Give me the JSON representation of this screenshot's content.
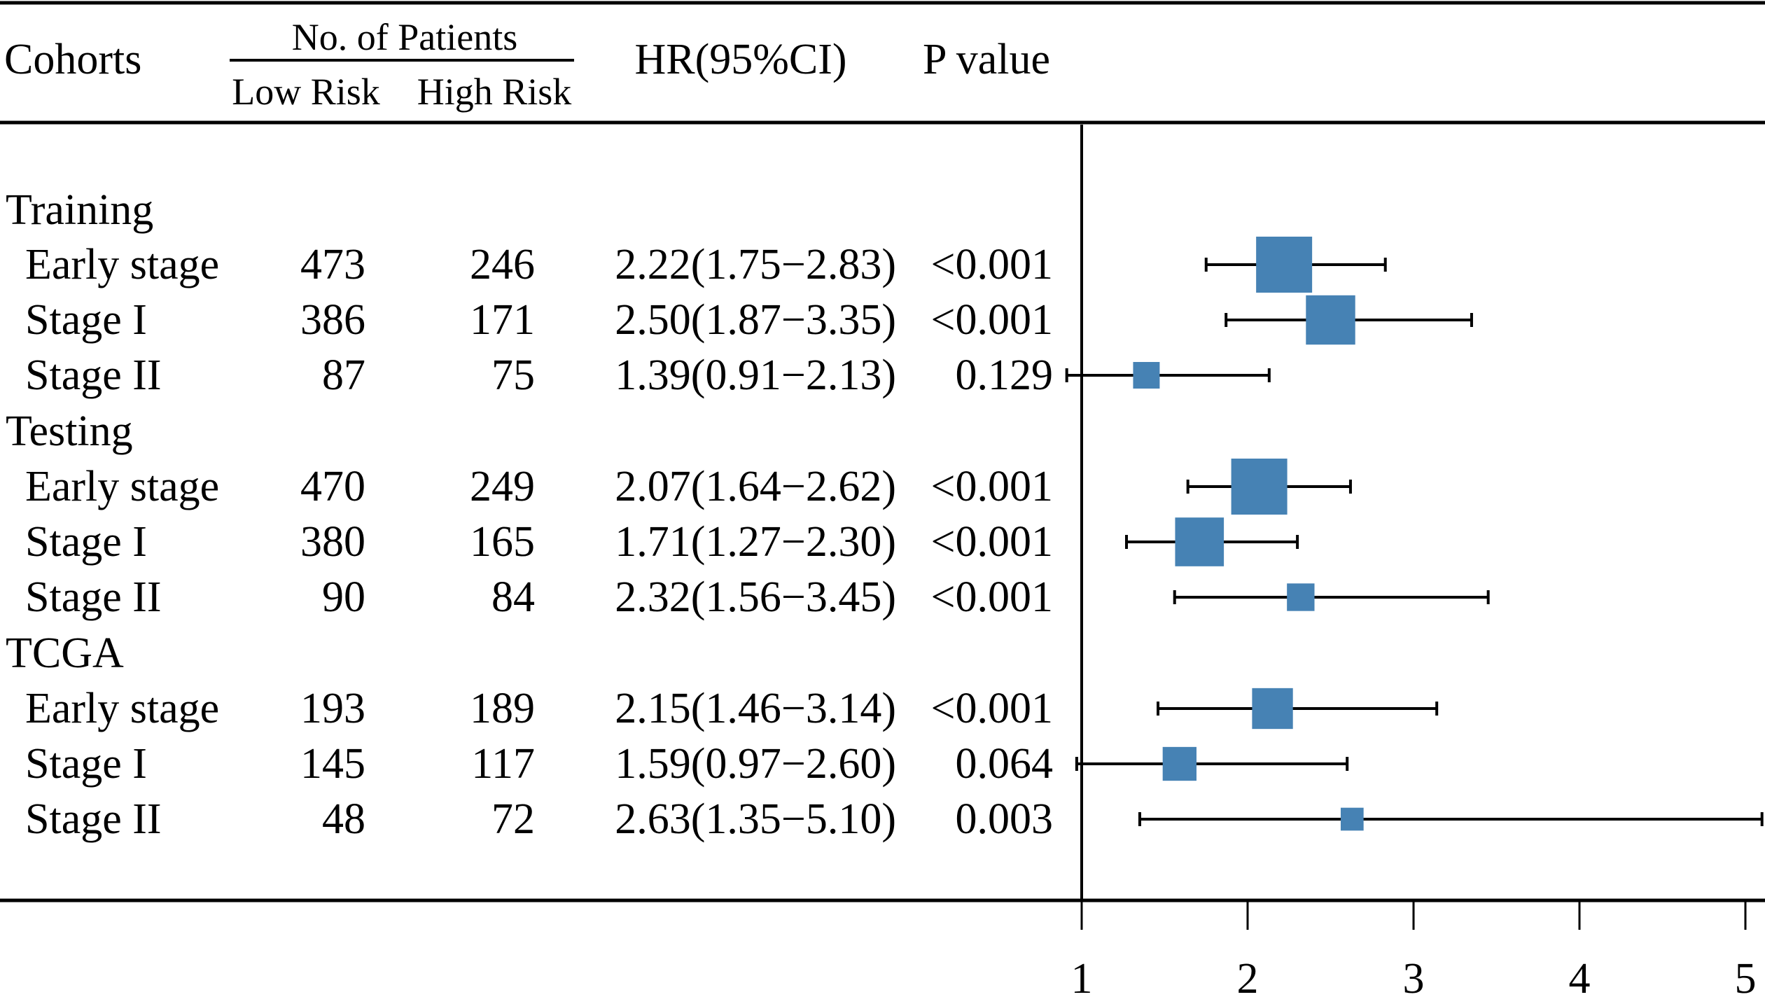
{
  "table": {
    "headers": {
      "cohorts": "Cohorts",
      "patients": "No. of Patients",
      "low_risk": "Low Risk",
      "high_risk": "High Risk",
      "hr": "HR(95%CI)",
      "p_value": "P value"
    },
    "groups": [
      {
        "name": "Training",
        "rows": [
          {
            "label": "Early stage",
            "low": "473",
            "high": "246",
            "hr_text": "2.22(1.75−2.83)",
            "p": "<0.001"
          },
          {
            "label": "Stage I",
            "low": "386",
            "high": "171",
            "hr_text": "2.50(1.87−3.35)",
            "p": "<0.001"
          },
          {
            "label": "Stage II",
            "low": "87",
            "high": "75",
            "hr_text": "1.39(0.91−2.13)",
            "p": "0.129"
          }
        ]
      },
      {
        "name": "Testing",
        "rows": [
          {
            "label": "Early stage",
            "low": "470",
            "high": "249",
            "hr_text": "2.07(1.64−2.62)",
            "p": "<0.001"
          },
          {
            "label": "Stage I",
            "low": "380",
            "high": "165",
            "hr_text": "1.71(1.27−2.30)",
            "p": "<0.001"
          },
          {
            "label": "Stage II",
            "low": "90",
            "high": "84",
            "hr_text": "2.32(1.56−3.45)",
            "p": "<0.001"
          }
        ]
      },
      {
        "name": "TCGA",
        "rows": [
          {
            "label": "Early stage",
            "low": "193",
            "high": "189",
            "hr_text": "2.15(1.46−3.14)",
            "p": "<0.001"
          },
          {
            "label": "Stage I",
            "low": "145",
            "high": "117",
            "hr_text": "1.59(0.97−2.60)",
            "p": "0.064"
          },
          {
            "label": "Stage II",
            "low": "48",
            "high": "72",
            "hr_text": "2.63(1.35−5.10)",
            "p": "0.003"
          }
        ]
      }
    ]
  },
  "chart_data": {
    "type": "forest",
    "title": "",
    "xlabel": "",
    "ylabel": "",
    "xlim": [
      1,
      5
    ],
    "xticks": [
      1,
      2,
      3,
      4,
      5
    ],
    "reference_line": 1,
    "marker_color": "#4682B4",
    "series": [
      {
        "group": "Training",
        "label": "Early stage",
        "hr": 2.22,
        "lower": 1.75,
        "upper": 2.83,
        "n_total": 719
      },
      {
        "group": "Training",
        "label": "Stage I",
        "hr": 2.5,
        "lower": 1.87,
        "upper": 3.35,
        "n_total": 557
      },
      {
        "group": "Training",
        "label": "Stage II",
        "hr": 1.39,
        "lower": 0.91,
        "upper": 2.13,
        "n_total": 162
      },
      {
        "group": "Testing",
        "label": "Early stage",
        "hr": 2.07,
        "lower": 1.64,
        "upper": 2.62,
        "n_total": 719
      },
      {
        "group": "Testing",
        "label": "Stage I",
        "hr": 1.71,
        "lower": 1.27,
        "upper": 2.3,
        "n_total": 545
      },
      {
        "group": "Testing",
        "label": "Stage II",
        "hr": 2.32,
        "lower": 1.56,
        "upper": 3.45,
        "n_total": 174
      },
      {
        "group": "TCGA",
        "label": "Early stage",
        "hr": 2.15,
        "lower": 1.46,
        "upper": 3.14,
        "n_total": 382
      },
      {
        "group": "TCGA",
        "label": "Stage I",
        "hr": 1.59,
        "lower": 0.97,
        "upper": 2.6,
        "n_total": 262
      },
      {
        "group": "TCGA",
        "label": "Stage II",
        "hr": 2.63,
        "lower": 1.35,
        "upper": 5.1,
        "n_total": 120
      }
    ]
  }
}
